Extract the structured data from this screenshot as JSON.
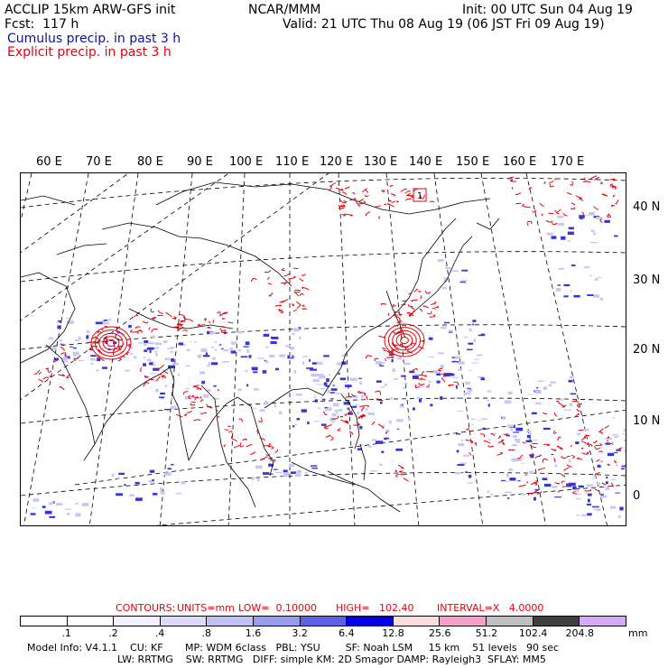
{
  "header": {
    "left_line1": "ACCLIP 15km ARW-GFS init",
    "center_line1": "NCAR/MMM",
    "right_line1": "Init: 00 UTC Sun 04 Aug 19",
    "left_line2": "Fcst:  117 h",
    "right_line2": "Valid: 21 UTC Thu 08 Aug 19 (06 JST Fri 09 Aug 19)",
    "legend_cumulus": "Cumulus precip. in past 3 h",
    "legend_explicit": "Explicit precip. in past 3 h"
  },
  "map": {
    "lon_labels": [
      "60 E",
      "70 E",
      "80 E",
      "90 E",
      "100 E",
      "110 E",
      "120 E",
      "130 E",
      "140 E",
      "150 E",
      "160 E",
      "170 E"
    ],
    "lat_labels": [
      "40 N",
      "30 N",
      "20 N",
      "10 N",
      "0"
    ],
    "point_labels": [
      "1"
    ],
    "colors": {
      "cumulus": "#3535d9",
      "explicit": "#e8000b",
      "coast": "#000000",
      "grid": "#000000"
    }
  },
  "contour_info": {
    "contours": "CONTOURS:",
    "units": "UNITS=mm",
    "low": "LOW=  0.10000",
    "high": "HIGH=   102.40",
    "interval": "INTERVAL=X   4.0000"
  },
  "colorbar": {
    "labels": [
      ".1",
      ".2",
      ".4",
      ".8",
      "1.6",
      "3.2",
      "6.4",
      "12.8",
      "25.6",
      "51.2",
      "102.4",
      "204.8"
    ],
    "unit": "mm",
    "colors": [
      "#ffffff",
      "#ffffff",
      "#f0f0ff",
      "#dcdcfa",
      "#c0c0f5",
      "#9a9aee",
      "#6060e6",
      "#0000e6",
      "#fadcdc",
      "#f5a0c8",
      "#c0c0c0",
      "#404040",
      "#d7aaf5"
    ]
  },
  "footer": {
    "line1": "Model Info: V4.1.1    CU: KF       MP: WDM 6class   PBL: YSU        SF: Noah LSM     15 km    51 levels   90 sec",
    "line2": "LW: RRTMG    SW: RRTMG   DIFF: simple KM: 2D Smagor DAMP: Rayleigh3  SFLAY: MM5"
  }
}
